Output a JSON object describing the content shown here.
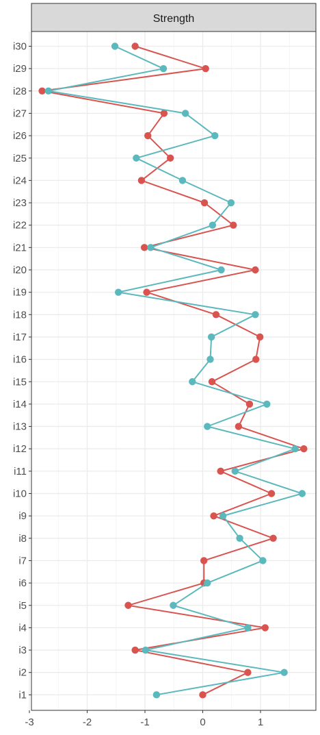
{
  "chart_data": {
    "type": "line",
    "title": "",
    "facet_label": "Strength",
    "xlabel": "",
    "ylabel": "",
    "xlim": [
      -3,
      1.92
    ],
    "x_ticks": [
      -3,
      -2,
      -1,
      0,
      1
    ],
    "x_tick_labels": [
      "-3",
      "-2",
      "-1",
      "0",
      "1"
    ],
    "categories": [
      "i1",
      "i2",
      "i3",
      "i4",
      "i5",
      "i6",
      "i7",
      "i8",
      "i9",
      "i10",
      "i11",
      "i12",
      "i13",
      "i14",
      "i15",
      "i16",
      "i17",
      "i18",
      "i19",
      "i20",
      "i21",
      "i22",
      "i23",
      "i24",
      "i25",
      "i26",
      "i27",
      "i28",
      "i29",
      "i30"
    ],
    "grid": true,
    "legend": "none",
    "series": [
      {
        "color": "#d9534f",
        "values": [
          0.0,
          0.78,
          -1.17,
          1.08,
          -1.29,
          0.02,
          0.02,
          1.22,
          0.19,
          1.19,
          0.31,
          1.75,
          0.62,
          0.81,
          0.16,
          0.92,
          0.99,
          0.23,
          -0.97,
          0.91,
          -1.01,
          0.53,
          0.03,
          -1.06,
          -0.56,
          -0.95,
          -0.67,
          -2.78,
          0.05,
          -1.17
        ]
      },
      {
        "color": "#5bb8bd",
        "values": [
          -0.8,
          1.41,
          -0.99,
          0.78,
          -0.51,
          0.08,
          1.04,
          0.64,
          0.35,
          1.72,
          0.56,
          1.6,
          0.08,
          1.11,
          -0.18,
          0.13,
          0.15,
          0.91,
          -1.46,
          0.32,
          -0.9,
          0.17,
          0.49,
          -0.35,
          -1.15,
          0.21,
          -0.3,
          -2.67,
          -0.68,
          -1.52
        ]
      }
    ]
  }
}
